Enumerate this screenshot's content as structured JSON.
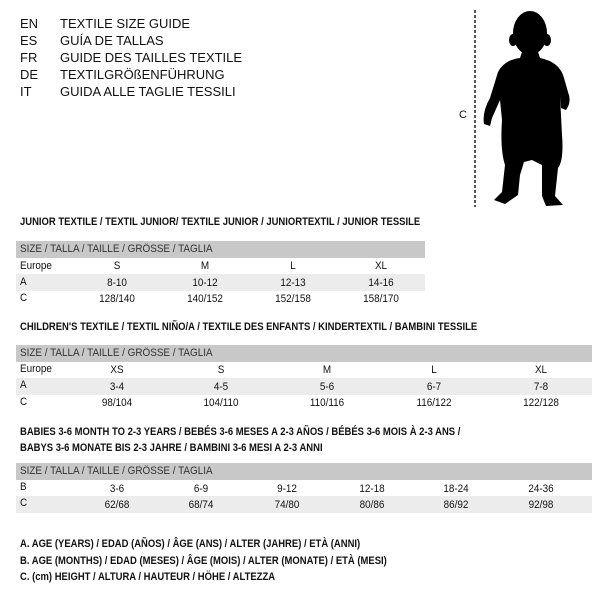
{
  "languages": [
    {
      "code": "EN",
      "title": "TEXTILE SIZE GUIDE"
    },
    {
      "code": "ES",
      "title": "GUÍA DE TALLAS"
    },
    {
      "code": "FR",
      "title": "GUIDE DES TAILLES TEXTILE"
    },
    {
      "code": "DE",
      "title": "TEXTILGRÖßENFÜHRUNG"
    },
    {
      "code": "IT",
      "title": "GUIDA ALLE TAGLIE TESSILI"
    }
  ],
  "figure": {
    "measure_label": "C",
    "icon": "child-silhouette"
  },
  "junior": {
    "title": "JUNIOR TEXTILE / TEXTIL JUNIOR/ TEXTILE JUNIOR / JUNIORTEXTIL / JUNIOR TESSILE",
    "header": "SIZE / TALLA / TAILLE / GRÖSSE / TAGLIA",
    "rows": [
      {
        "label": "Europe",
        "values": [
          "S",
          "M",
          "L",
          "XL"
        ]
      },
      {
        "label": "A",
        "values": [
          "8-10",
          "10-12",
          "12-13",
          "14-16"
        ]
      },
      {
        "label": "C",
        "values": [
          "128/140",
          "140/152",
          "152/158",
          "158/170"
        ]
      }
    ]
  },
  "children": {
    "title": "CHILDREN'S TEXTILE / TEXTIL NIÑO/A / TEXTILE DES ENFANTS / KINDERTEXTIL / BAMBINI TESSILE",
    "header": "SIZE / TALLA / TAILLE / GRÖSSE / TAGLIA",
    "rows": [
      {
        "label": "Europe",
        "values": [
          "XS",
          "S",
          "M",
          "L",
          "XL"
        ]
      },
      {
        "label": "A",
        "values": [
          "3-4",
          "4-5",
          "5-6",
          "6-7",
          "7-8"
        ]
      },
      {
        "label": "C",
        "values": [
          "98/104",
          "104/110",
          "110/116",
          "116/122",
          "122/128"
        ]
      }
    ]
  },
  "babies": {
    "title_line1": "BABIES 3-6 MONTH TO 2-3 YEARS / BEBÉS 3-6 MESES A 2-3 AÑOS / BÉBÉS 3-6 MOIS À 2-3 ANS /",
    "title_line2": "BABYS 3-6 MONATE BIS 2-3 JAHRE / BAMBINI 3-6 MESI A 2-3 ANNI",
    "header": "SIZE / TALLA / TAILLE / GRÖSSE / TAGLIA",
    "rows": [
      {
        "label": "B",
        "values": [
          "3-6",
          "6-9",
          "9-12",
          "12-18",
          "18-24",
          "24-36"
        ]
      },
      {
        "label": "C",
        "values": [
          "62/68",
          "68/74",
          "74/80",
          "80/86",
          "86/92",
          "92/98"
        ]
      }
    ]
  },
  "legend": [
    "A. AGE (YEARS) / EDAD (AÑOS) / ÂGE (ANS) / ALTER (JAHRE) / ETÀ (ANNI)",
    "B. AGE (MONTHS) / EDAD (MESES) / ÂGE (MOIS) / ALTER (MONATE) / ETÀ (MESI)",
    "C. (cm) HEIGHT / ALTURA / HAUTEUR / HÖHE / ALTEZZA"
  ]
}
